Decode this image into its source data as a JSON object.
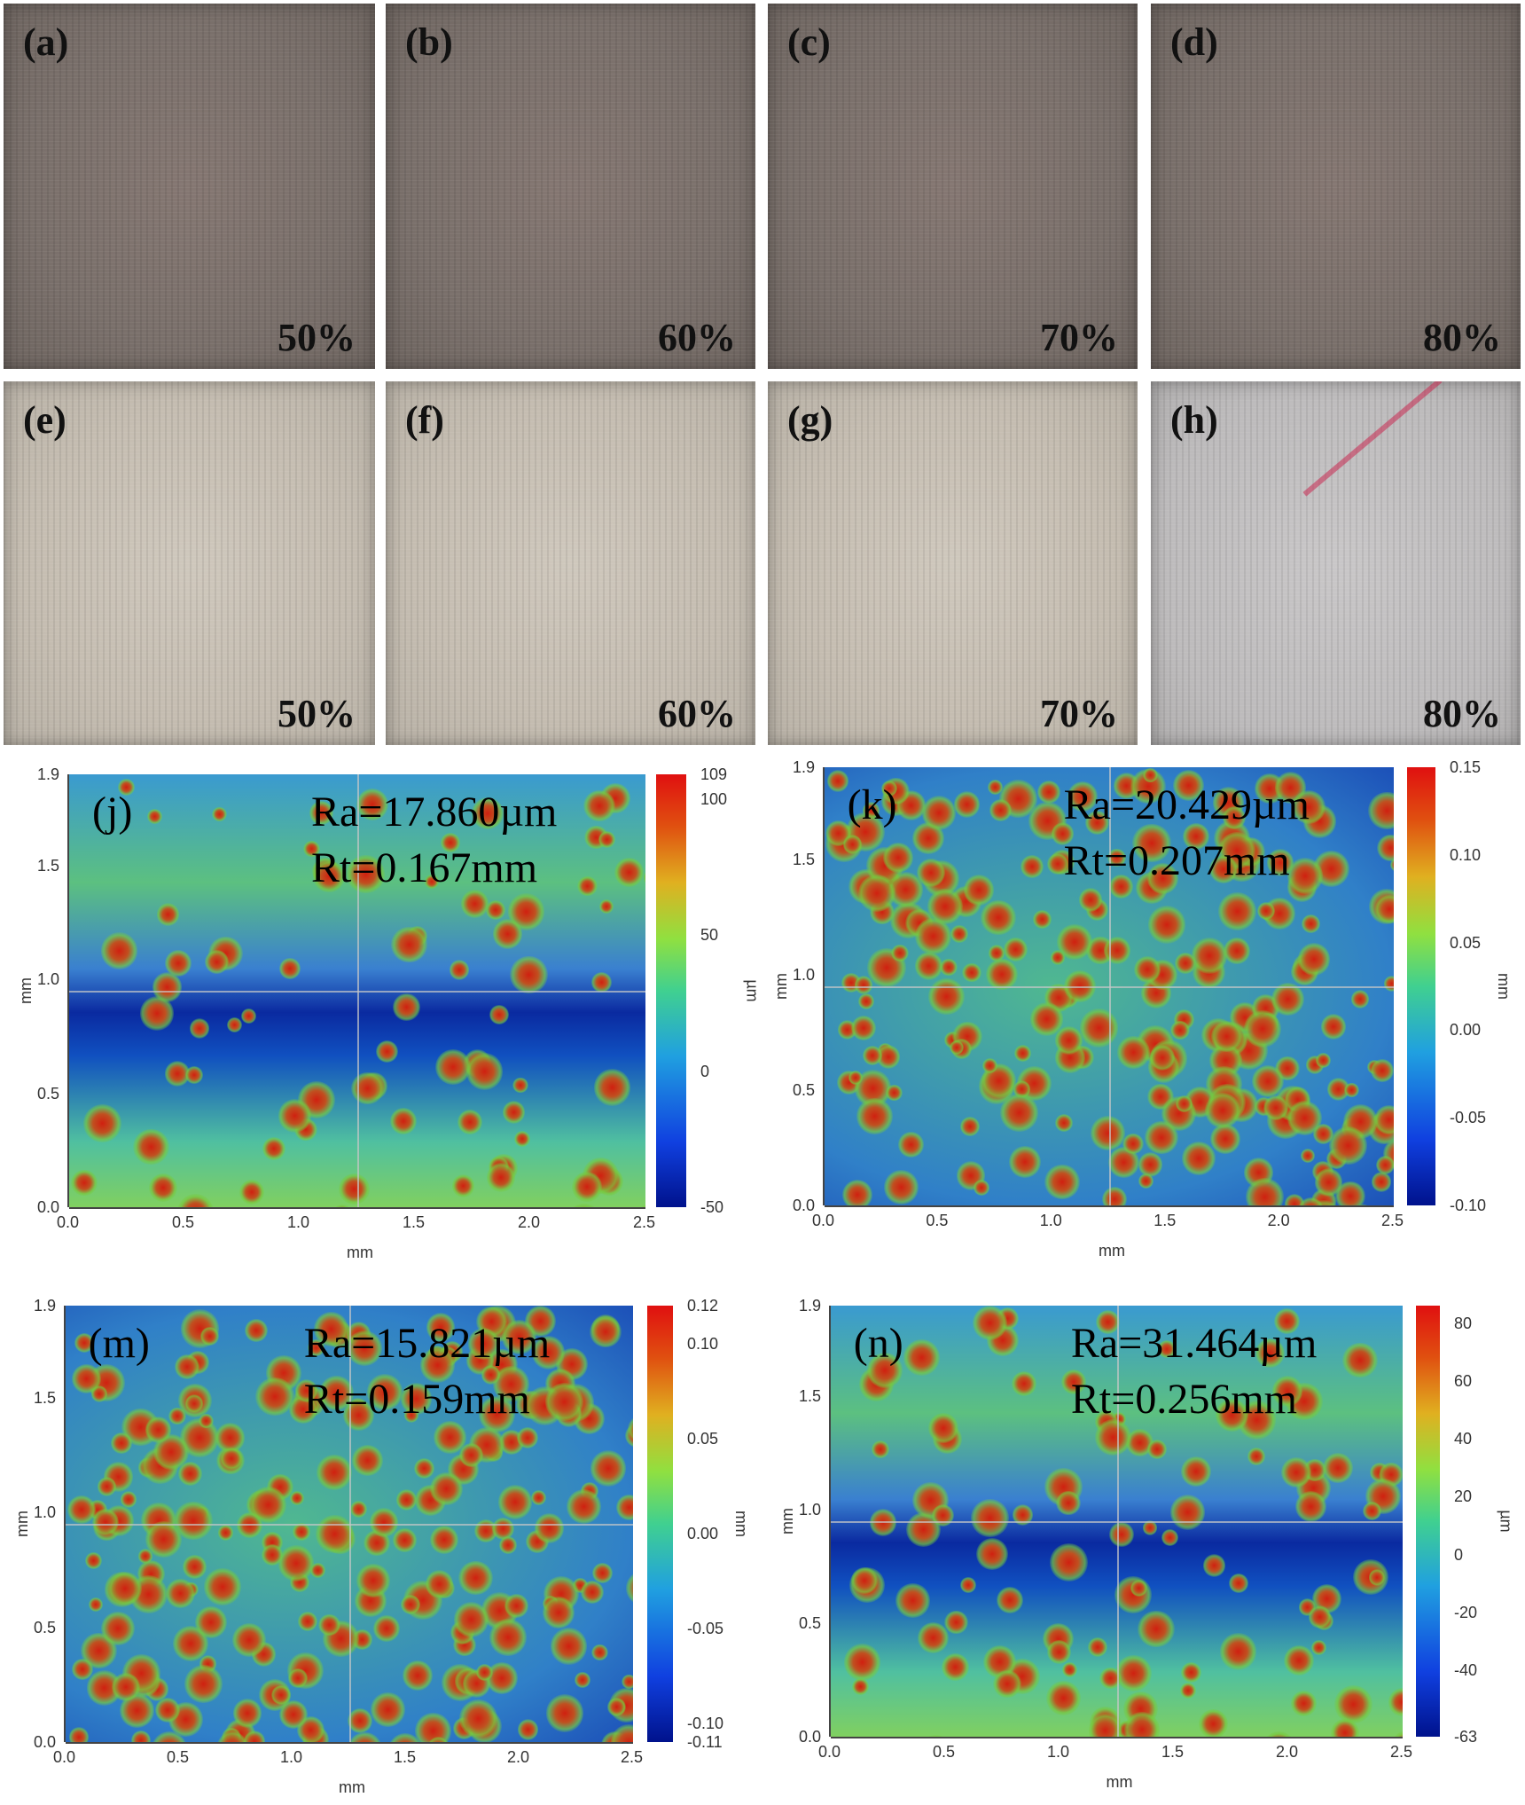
{
  "photos_top": [
    {
      "label": "(a)",
      "percent": "50%"
    },
    {
      "label": "(b)",
      "percent": "60%"
    },
    {
      "label": "(c)",
      "percent": "70%"
    },
    {
      "label": "(d)",
      "percent": "80%"
    }
  ],
  "photos_bottom": [
    {
      "label": "(e)",
      "percent": "50%"
    },
    {
      "label": "(f)",
      "percent": "60%"
    },
    {
      "label": "(g)",
      "percent": "70%"
    },
    {
      "label": "(h)",
      "percent": "80%"
    }
  ],
  "maps": [
    {
      "label": "(j)",
      "ra": "Ra=17.860µm",
      "rt": "Rt=0.167mm",
      "xlabel": "mm",
      "ylabel": "mm",
      "xticks": [
        "0.0",
        "0.5",
        "1.0",
        "1.5",
        "2.0",
        "2.5"
      ],
      "yticks": [
        "0.0",
        "0.5",
        "1.0",
        "1.5",
        "1.9"
      ],
      "cbar_unit": "µm",
      "cbar_range": [
        -50,
        109
      ],
      "cbar_ticks": [
        "109",
        "100",
        "50",
        "0",
        "-50"
      ],
      "blue_band": true,
      "density": 0.35
    },
    {
      "label": "(k)",
      "ra": "Ra=20.429µm",
      "rt": "Rt=0.207mm",
      "xlabel": "mm",
      "ylabel": "mm",
      "xticks": [
        "0.0",
        "0.5",
        "1.0",
        "1.5",
        "2.0",
        "2.5"
      ],
      "yticks": [
        "0.0",
        "0.5",
        "1.0",
        "1.5",
        "1.9"
      ],
      "cbar_unit": "mm",
      "cbar_range": [
        -0.1,
        0.15
      ],
      "cbar_ticks": [
        "0.15",
        "0.10",
        "0.05",
        "0.00",
        "-0.05",
        "-0.10"
      ],
      "blue_band": false,
      "density": 1.0
    },
    {
      "label": "(m)",
      "ra": "Ra=15.821µm",
      "rt": "Rt=0.159mm",
      "xlabel": "mm",
      "ylabel": "mm",
      "xticks": [
        "0.0",
        "0.5",
        "1.0",
        "1.5",
        "2.0",
        "2.5"
      ],
      "yticks": [
        "0.0",
        "0.5",
        "1.0",
        "1.5",
        "1.9"
      ],
      "cbar_unit": "mm",
      "cbar_range": [
        -0.11,
        0.12
      ],
      "cbar_ticks": [
        "0.12",
        "0.10",
        "0.05",
        "0.00",
        "-0.05",
        "-0.10",
        "-0.11"
      ],
      "blue_band": false,
      "density": 1.0
    },
    {
      "label": "(n)",
      "ra": "Ra=31.464µm",
      "rt": "Rt=0.256mm",
      "xlabel": "mm",
      "ylabel": "mm",
      "xticks": [
        "0.0",
        "0.5",
        "1.0",
        "1.5",
        "2.0",
        "2.5"
      ],
      "yticks": [
        "0.0",
        "0.5",
        "1.0",
        "1.5",
        "1.9"
      ],
      "cbar_unit": "µm",
      "cbar_range": [
        -63,
        86
      ],
      "cbar_ticks": [
        "80",
        "60",
        "40",
        "20",
        "0",
        "-20",
        "-40",
        "-63"
      ],
      "blue_band": true,
      "density": 0.45
    }
  ]
}
